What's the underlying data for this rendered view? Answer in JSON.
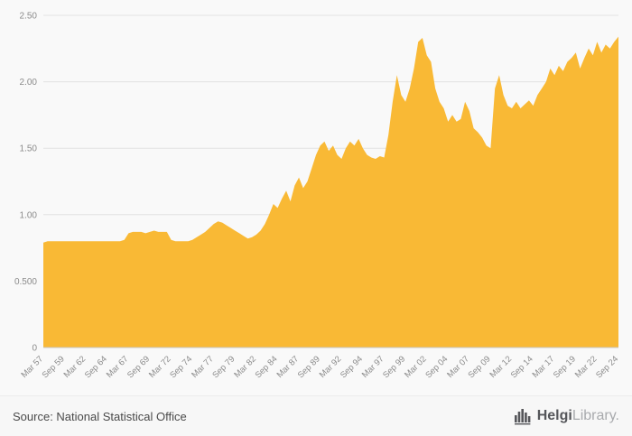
{
  "chart_data": {
    "type": "area",
    "title": "",
    "xlabel": "",
    "ylabel": "",
    "grid": true,
    "legend": false,
    "xlim": [
      1957.25,
      2024.75
    ],
    "ylim": [
      0,
      2.5
    ],
    "x_start": 1957.25,
    "x_step": 0.5,
    "values": [
      0.79,
      0.8,
      0.8,
      0.8,
      0.8,
      0.8,
      0.8,
      0.8,
      0.8,
      0.8,
      0.8,
      0.8,
      0.8,
      0.8,
      0.8,
      0.8,
      0.8,
      0.8,
      0.8,
      0.81,
      0.86,
      0.87,
      0.87,
      0.87,
      0.86,
      0.87,
      0.88,
      0.87,
      0.87,
      0.87,
      0.81,
      0.8,
      0.8,
      0.8,
      0.8,
      0.81,
      0.83,
      0.85,
      0.87,
      0.9,
      0.93,
      0.95,
      0.94,
      0.92,
      0.9,
      0.88,
      0.86,
      0.84,
      0.82,
      0.83,
      0.85,
      0.88,
      0.93,
      1.0,
      1.08,
      1.05,
      1.12,
      1.18,
      1.1,
      1.22,
      1.28,
      1.2,
      1.25,
      1.35,
      1.45,
      1.52,
      1.55,
      1.48,
      1.52,
      1.45,
      1.42,
      1.5,
      1.55,
      1.52,
      1.57,
      1.5,
      1.45,
      1.43,
      1.42,
      1.44,
      1.43,
      1.6,
      1.85,
      2.05,
      1.9,
      1.85,
      1.95,
      2.1,
      2.3,
      2.33,
      2.2,
      2.15,
      1.95,
      1.85,
      1.8,
      1.7,
      1.75,
      1.7,
      1.72,
      1.85,
      1.78,
      1.65,
      1.62,
      1.58,
      1.52,
      1.5,
      1.95,
      2.05,
      1.9,
      1.82,
      1.8,
      1.85,
      1.8,
      1.83,
      1.86,
      1.82,
      1.9,
      1.95,
      2.0,
      2.1,
      2.05,
      2.12,
      2.08,
      2.15,
      2.18,
      2.22,
      2.1,
      2.18,
      2.25,
      2.2,
      2.3,
      2.22,
      2.28,
      2.25,
      2.3,
      2.34
    ],
    "y_ticks": [
      {
        "value": 0,
        "label": "0"
      },
      {
        "value": 0.5,
        "label": "0.500"
      },
      {
        "value": 1.0,
        "label": "1.00"
      },
      {
        "value": 1.5,
        "label": "1.50"
      },
      {
        "value": 2.0,
        "label": "2.00"
      },
      {
        "value": 2.5,
        "label": "2.50"
      }
    ],
    "x_ticks": {
      "start": 1957.25,
      "step": 2.5,
      "labels": [
        "Mar 57",
        "Sep 59",
        "Mar 62",
        "Sep 64",
        "Mar 67",
        "Sep 69",
        "Mar 72",
        "Sep 74",
        "Mar 77",
        "Sep 79",
        "Mar 82",
        "Sep 84",
        "Mar 87",
        "Sep 89",
        "Mar 92",
        "Sep 94",
        "Mar 97",
        "Sep 99",
        "Mar 02",
        "Sep 04",
        "Mar 07",
        "Sep 09",
        "Mar 12",
        "Sep 14",
        "Mar 17",
        "Sep 19",
        "Mar 22",
        "Sep 24"
      ]
    }
  },
  "colors": {
    "area_fill": "#F9B935",
    "grid": "#E2E2E2",
    "axis_line": "#C8C8C8",
    "tick_text": "#8C8C8C"
  },
  "footer": {
    "source_label": "Source: National Statistical Office"
  },
  "logo": {
    "name": "Helgi",
    "suffix": "Library."
  }
}
